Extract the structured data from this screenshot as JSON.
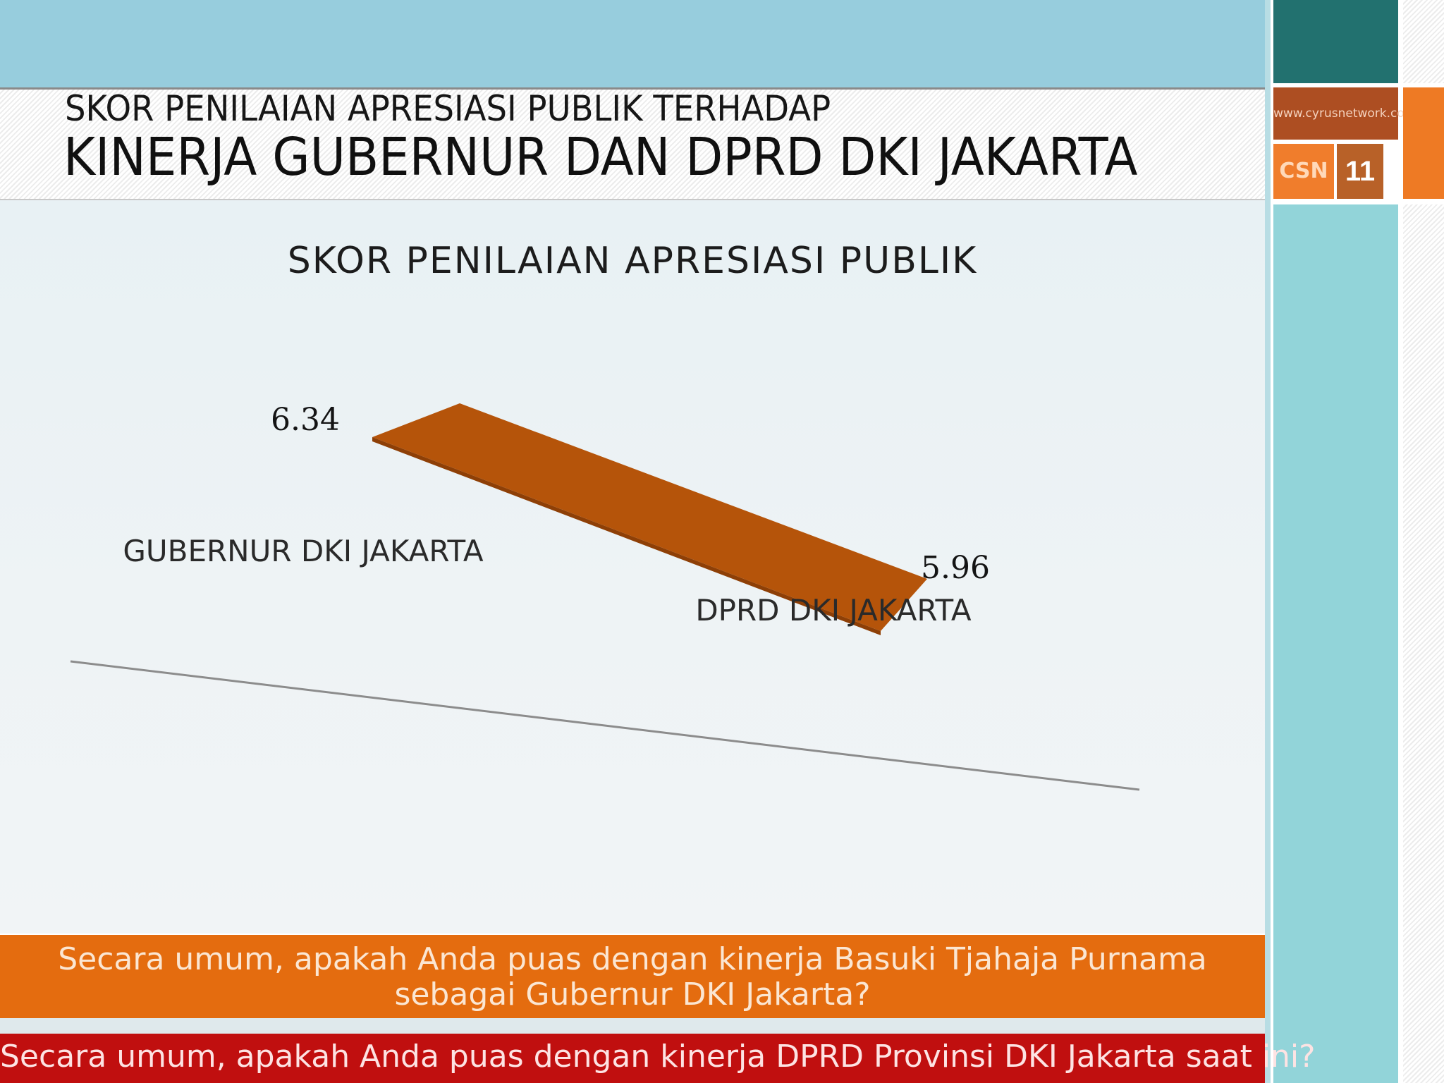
{
  "header": {
    "title_line1": "SKOR PENILAIAN APRESIASI PUBLIK TERHADAP",
    "title_line2": "KINERJA GUBERNUR DAN DPRD DKI JAKARTA"
  },
  "sidebar": {
    "url": "www.cyrusnetwork.co",
    "logo_text": "CSN",
    "page_number": "11"
  },
  "chart_data": {
    "type": "line",
    "title": "SKOR PENILAIAN APRESIASI PUBLIK",
    "categories": [
      "GUBERNUR DKI JAKARTA",
      "DPRD DKI JAKARTA"
    ],
    "values": [
      6.34,
      5.96
    ],
    "value_labels": [
      "6.34",
      "5.96"
    ],
    "xlabel": "",
    "ylabel": "",
    "style": "3d-ribbon",
    "line_color": "#b5540a",
    "grid": false,
    "legend": "none"
  },
  "questions": {
    "gubernur": "Secara umum, apakah Anda puas dengan kinerja Basuki Tjahaja Purnama sebagai Gubernur DKI Jakarta?",
    "dprd": "Secara umum, apakah Anda puas dengan kinerja DPRD Provinsi DKI Jakarta saat ini?"
  },
  "colors": {
    "top_band": "#97cddd",
    "orange_bar": "#e46c0f",
    "red_bar": "#c00f0f",
    "sidebar_teal": "#22716f"
  }
}
